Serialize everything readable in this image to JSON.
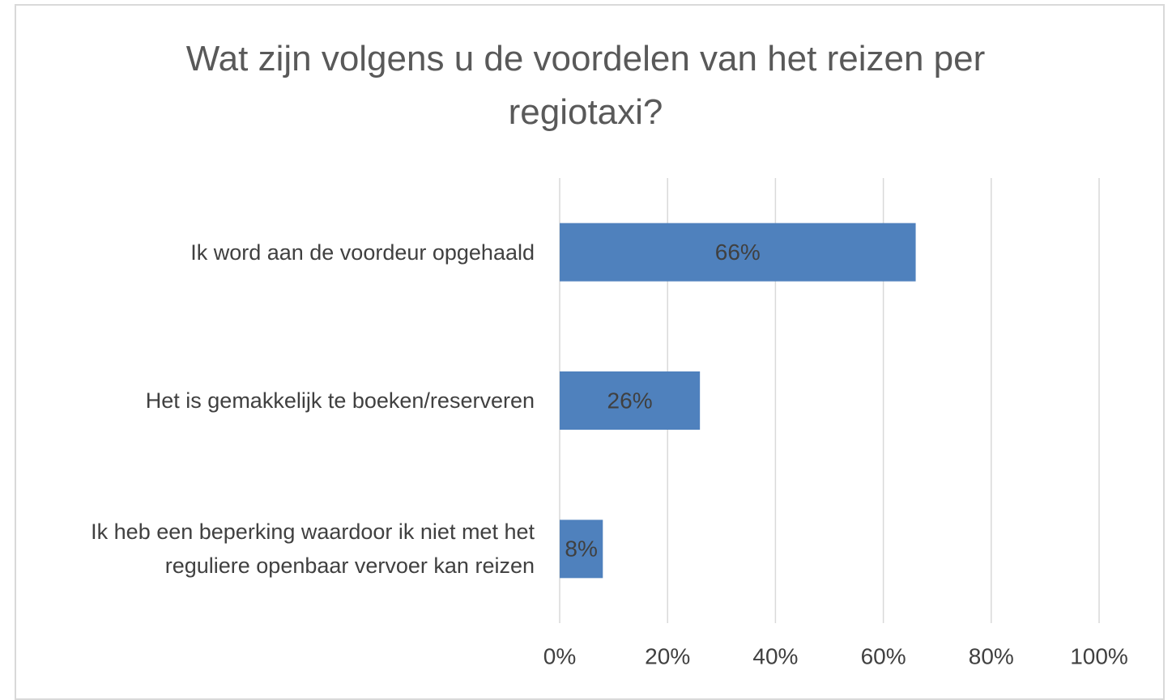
{
  "chart_data": {
    "type": "barh",
    "title": "Wat zijn volgens u de voordelen van het reizen per regiotaxi?",
    "categories": [
      "Ik word aan de voordeur opgehaald",
      "Het is gemakkelijk te boeken/reserveren",
      "Ik heb een beperking waardoor ik niet met het reguliere openbaar vervoer kan reizen"
    ],
    "values": [
      66,
      26,
      8
    ],
    "value_labels": [
      "66%",
      "26%",
      "8%"
    ],
    "color": "#4f81bd",
    "xlim": [
      0,
      100
    ],
    "xticks": [
      {
        "value": 0,
        "label": "0%"
      },
      {
        "value": 20,
        "label": "20%"
      },
      {
        "value": 40,
        "label": "40%"
      },
      {
        "value": 60,
        "label": "60%"
      },
      {
        "value": 80,
        "label": "80%"
      },
      {
        "value": 100,
        "label": "100%"
      }
    ],
    "grid": true
  }
}
